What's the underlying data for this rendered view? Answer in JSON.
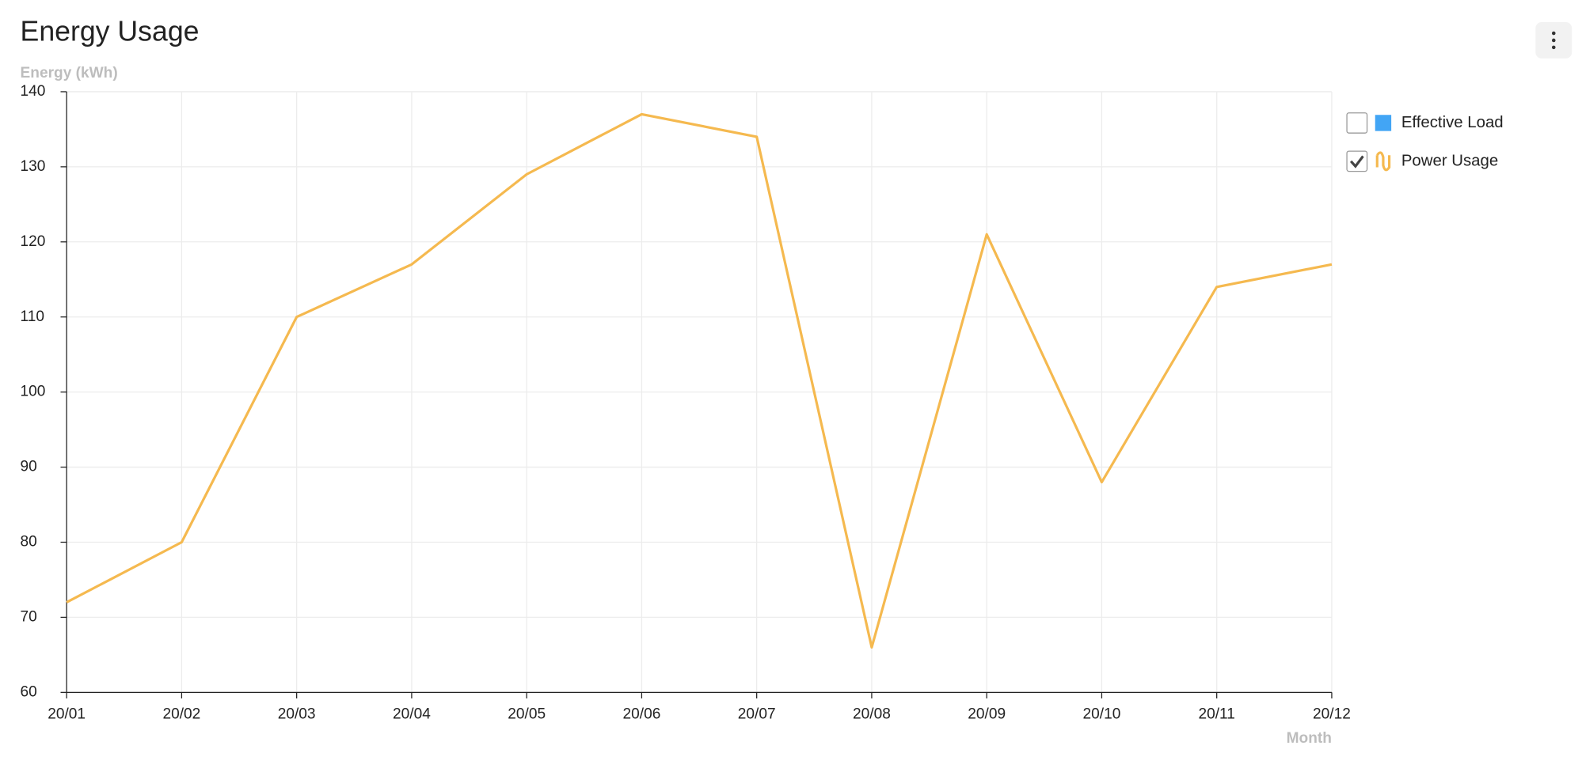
{
  "chart_data": {
    "type": "line",
    "title": "Energy Usage",
    "y_label": "Energy (kWh)",
    "x_label": "Month",
    "categories": [
      "20/01",
      "20/02",
      "20/03",
      "20/04",
      "20/05",
      "20/06",
      "20/07",
      "20/08",
      "20/09",
      "20/10",
      "20/11",
      "20/12"
    ],
    "series": [
      {
        "name": "Effective Load",
        "color": "#42a5f5",
        "visible": false
      },
      {
        "name": "Power Usage",
        "color": "#f5b94f",
        "visible": true,
        "values": [
          72,
          80,
          110,
          117,
          129,
          137,
          134,
          66,
          121,
          88,
          114,
          117
        ]
      }
    ],
    "ylim": [
      60,
      140
    ],
    "yticks": [
      60,
      70,
      80,
      90,
      100,
      110,
      120,
      130,
      140
    ],
    "grid": true,
    "legend": "right"
  }
}
